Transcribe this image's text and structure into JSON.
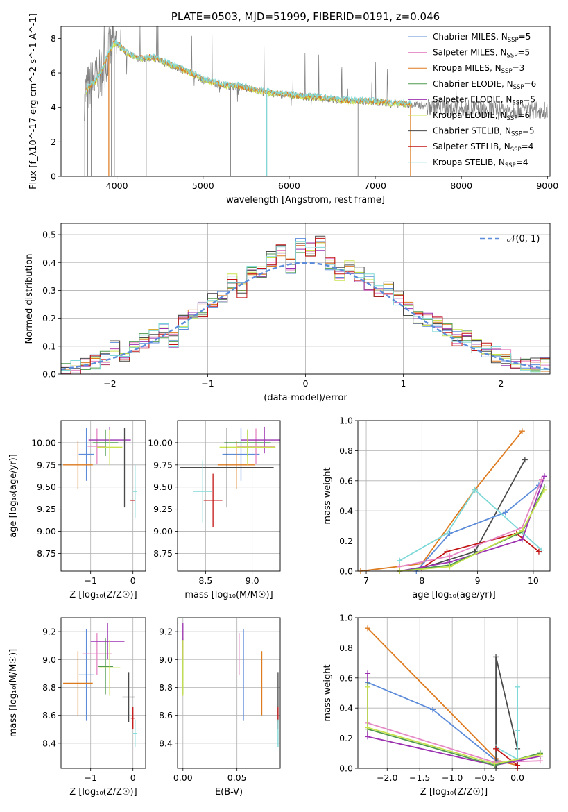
{
  "colors": {
    "Chabrier MILES": "#5b8bd9",
    "Salpeter MILES": "#e585c4",
    "Kroupa MILES": "#de7b1f",
    "Chabrier ELODIE": "#4f9a4f",
    "Salpeter ELODIE": "#9b30b0",
    "Kroupa ELODIE": "#c9e34f",
    "Chabrier STELIB": "#4a4a4a",
    "Salpeter STELIB": "#c21414",
    "Kroupa STELIB": "#7fd8d8",
    "spectrum": "#808080",
    "normal": "#5b8bd9"
  },
  "chart_data": [
    {
      "type": "line",
      "title": "PLATE=0503, MJD=51999, FIBERID=0191, z=0.046",
      "xlabel": "wavelength [Angstrom, rest frame]",
      "ylabel": "Flux [f_λ10^-17 erg cm^-2 s^-1 A^-1]",
      "xlim": [
        3350,
        9030
      ],
      "ylim": [
        0,
        8.7
      ],
      "xticks": [
        "4000",
        "5000",
        "6000",
        "7000",
        "8000",
        "9000"
      ],
      "yticks": [
        "0",
        "2",
        "4",
        "6",
        "8"
      ],
      "legend_position": "top-right",
      "legend": [
        {
          "model": "Chabrier MILES",
          "label": "Chabrier MILES, N",
          "nssp": "=5"
        },
        {
          "model": "Salpeter MILES",
          "label": "Salpeter MILES, N",
          "nssp": "=5"
        },
        {
          "model": "Kroupa MILES",
          "label": "Kroupa MILES, N",
          "nssp": "=3"
        },
        {
          "model": "Chabrier ELODIE",
          "label": "Chabrier ELODIE, N",
          "nssp": "=6"
        },
        {
          "model": "Salpeter ELODIE",
          "label": "Salpeter ELODIE, N",
          "nssp": "=5"
        },
        {
          "model": "Kroupa ELODIE",
          "label": "Kroupa ELODIE, N",
          "nssp": "=6"
        },
        {
          "model": "Chabrier STELIB",
          "label": "Chabrier STELIB, N",
          "nssp": "=5"
        },
        {
          "model": "Salpeter STELIB",
          "label": "Salpeter STELIB, N",
          "nssp": "=4"
        },
        {
          "model": "Kroupa STELIB",
          "label": "Kroupa STELIB, N",
          "nssp": "=4"
        }
      ],
      "legend_subscript": "SSP",
      "continuum": {
        "x": [
          3600,
          3650,
          3700,
          3750,
          3800,
          3850,
          3900,
          3950,
          4000,
          4100,
          4200,
          4300,
          4400,
          4500,
          4600,
          4800,
          5000,
          5200,
          5400,
          5600,
          5800,
          6000,
          6200,
          6400,
          6600,
          6800,
          7000,
          7200,
          7400
        ],
        "y": [
          4.5,
          5.0,
          5.3,
          5.5,
          5.9,
          6.4,
          7.1,
          7.6,
          7.7,
          7.2,
          6.9,
          6.8,
          6.9,
          6.7,
          6.5,
          6.1,
          5.6,
          5.3,
          5.2,
          5.0,
          4.8,
          4.7,
          4.6,
          4.5,
          4.4,
          4.35,
          4.3,
          4.2,
          4.15
        ]
      }
    },
    {
      "type": "bar",
      "xlabel": "(data-model)/error",
      "ylabel": "Normed distribution",
      "xlim": [
        -2.5,
        2.5
      ],
      "ylim": [
        0,
        0.54
      ],
      "xticks": [
        "−2",
        "−1",
        "0",
        "1",
        "2"
      ],
      "yticks": [
        "0.0",
        "0.1",
        "0.2",
        "0.3",
        "0.4",
        "0.5"
      ],
      "legend": "𝒩(0, 1)",
      "legend_position": "top-right",
      "bin_width": 0.1,
      "x": [
        -2.45,
        -2.35,
        -2.25,
        -2.15,
        -2.05,
        -1.95,
        -1.85,
        -1.75,
        -1.65,
        -1.55,
        -1.45,
        -1.35,
        -1.25,
        -1.15,
        -1.05,
        -0.95,
        -0.85,
        -0.75,
        -0.65,
        -0.55,
        -0.45,
        -0.35,
        -0.25,
        -0.15,
        -0.05,
        0.05,
        0.15,
        0.25,
        0.35,
        0.45,
        0.55,
        0.65,
        0.75,
        0.85,
        0.95,
        1.05,
        1.15,
        1.25,
        1.35,
        1.45,
        1.55,
        1.65,
        1.75,
        1.85,
        1.95,
        2.05,
        2.15,
        2.25,
        2.35,
        2.45
      ],
      "y": [
        0.02,
        0.025,
        0.03,
        0.04,
        0.06,
        0.09,
        0.07,
        0.1,
        0.12,
        0.14,
        0.16,
        0.12,
        0.19,
        0.21,
        0.23,
        0.26,
        0.27,
        0.33,
        0.3,
        0.37,
        0.36,
        0.41,
        0.44,
        0.39,
        0.46,
        0.45,
        0.47,
        0.4,
        0.36,
        0.38,
        0.36,
        0.33,
        0.3,
        0.31,
        0.27,
        0.24,
        0.21,
        0.2,
        0.18,
        0.16,
        0.13,
        0.14,
        0.1,
        0.09,
        0.07,
        0.06,
        0.05,
        0.04,
        0.035,
        0.03
      ]
    },
    {
      "type": "scatter",
      "xlabel": "Z [log₁₀(Z/Z☉)]",
      "ylabel": "age  [log₁₀(age/yr)]",
      "xlim": [
        -1.7,
        0.3
      ],
      "ylim": [
        8.55,
        10.25
      ],
      "xticks": [
        "−1",
        "0"
      ],
      "yticks": [
        "8.75",
        "9.00",
        "9.25",
        "9.50",
        "9.75",
        "10.00"
      ],
      "points": [
        {
          "model": "Chabrier MILES",
          "x": -1.1,
          "y": 9.87,
          "xerr": 0.18,
          "yerr": 0.3
        },
        {
          "model": "Salpeter MILES",
          "x": -0.85,
          "y": 9.96,
          "xerr": 0.22,
          "yerr": 0.2
        },
        {
          "model": "Kroupa MILES",
          "x": -1.3,
          "y": 9.75,
          "xerr": 0.35,
          "yerr": 0.27
        },
        {
          "model": "Chabrier ELODIE",
          "x": -0.65,
          "y": 10.0,
          "xerr": 0.3,
          "yerr": 0.15
        },
        {
          "model": "Salpeter ELODIE",
          "x": -0.55,
          "y": 10.03,
          "xerr": 0.5,
          "yerr": 0.15
        },
        {
          "model": "Kroupa ELODIE",
          "x": -0.55,
          "y": 9.95,
          "xerr": 0.3,
          "yerr": 0.2
        },
        {
          "model": "Chabrier STELIB",
          "x": -0.2,
          "y": 9.72,
          "xerr": 0.0,
          "yerr": 0.45
        },
        {
          "model": "Salpeter STELIB",
          "x": 0.0,
          "y": 9.35,
          "xerr": 0.06,
          "yerr": 0.0
        },
        {
          "model": "Kroupa STELIB",
          "x": 0.05,
          "y": 9.45,
          "xerr": 0.05,
          "yerr": 0.3
        }
      ]
    },
    {
      "type": "scatter",
      "xlabel": "mass [log₁₀(M/M☉)]",
      "ylabel": "",
      "xlim": [
        8.2,
        9.3
      ],
      "ylim": [
        8.55,
        10.25
      ],
      "xticks": [
        "8.5",
        "9.0"
      ],
      "yticks": [
        "8.75",
        "9.00",
        "9.25",
        "9.50",
        "9.75",
        "10.00"
      ],
      "points": [
        {
          "model": "Chabrier MILES",
          "x": 8.88,
          "y": 9.87,
          "xerr": 0.2,
          "yerr": 0.3
        },
        {
          "model": "Salpeter MILES",
          "x": 9.04,
          "y": 9.96,
          "xerr": 0.2,
          "yerr": 0.2
        },
        {
          "model": "Kroupa MILES",
          "x": 8.83,
          "y": 9.75,
          "xerr": 0.2,
          "yerr": 0.27
        },
        {
          "model": "Chabrier ELODIE",
          "x": 8.95,
          "y": 10.0,
          "xerr": 0.25,
          "yerr": 0.15
        },
        {
          "model": "Salpeter ELODIE",
          "x": 9.13,
          "y": 10.03,
          "xerr": 0.25,
          "yerr": 0.15
        },
        {
          "model": "Kroupa ELODIE",
          "x": 8.95,
          "y": 9.95,
          "xerr": 0.3,
          "yerr": 0.2
        },
        {
          "model": "Chabrier STELIB",
          "x": 8.73,
          "y": 9.72,
          "xerr": 0.5,
          "yerr": 0.45
        },
        {
          "model": "Salpeter STELIB",
          "x": 8.58,
          "y": 9.35,
          "xerr": 0.1,
          "yerr": 0.3
        },
        {
          "model": "Kroupa STELIB",
          "x": 8.47,
          "y": 9.45,
          "xerr": 0.1,
          "yerr": 0.35
        }
      ]
    },
    {
      "type": "line",
      "xlabel": "age  [log₁₀(age/yr)]",
      "ylabel": "mass weight",
      "xlim": [
        6.85,
        10.3
      ],
      "ylim": [
        0,
        1.0
      ],
      "xticks": [
        "7",
        "8",
        "9",
        "10"
      ],
      "yticks": [
        "0.0",
        "0.2",
        "0.4",
        "0.6",
        "0.8",
        "1.0"
      ],
      "series": [
        {
          "model": "Kroupa MILES",
          "x": [
            6.9,
            8.0,
            8.95,
            9.8
          ],
          "y": [
            0.0,
            0.05,
            0.54,
            0.93
          ]
        },
        {
          "model": "Chabrier STELIB",
          "x": [
            7.6,
            8.0,
            8.95,
            9.85
          ],
          "y": [
            0.0,
            0.02,
            0.13,
            0.74
          ]
        },
        {
          "model": "Chabrier MILES",
          "x": [
            7.9,
            8.5,
            9.5,
            10.1
          ],
          "y": [
            0.0,
            0.25,
            0.39,
            0.57
          ]
        },
        {
          "model": "Kroupa STELIB",
          "x": [
            7.6,
            8.45,
            8.95,
            10.15
          ],
          "y": [
            0.07,
            0.25,
            0.54,
            0.14
          ]
        },
        {
          "model": "Salpeter STELIB",
          "x": [
            7.6,
            8.0,
            8.45,
            9.7,
            10.1
          ],
          "y": [
            0.0,
            0.02,
            0.13,
            0.25,
            0.13
          ]
        },
        {
          "model": "Salpeter ELODIE",
          "x": [
            7.6,
            8.5,
            9.8,
            10.2
          ],
          "y": [
            0.0,
            0.06,
            0.21,
            0.63
          ]
        },
        {
          "model": "Salpeter MILES",
          "x": [
            7.6,
            8.5,
            9.8,
            10.15
          ],
          "y": [
            0.03,
            0.1,
            0.29,
            0.61
          ]
        },
        {
          "model": "Chabrier ELODIE",
          "x": [
            7.6,
            8.5,
            9.8,
            10.2
          ],
          "y": [
            0.0,
            0.04,
            0.26,
            0.56
          ]
        },
        {
          "model": "Kroupa ELODIE",
          "x": [
            7.6,
            8.5,
            9.8,
            10.2
          ],
          "y": [
            0.0,
            0.03,
            0.27,
            0.54
          ]
        }
      ]
    },
    {
      "type": "scatter",
      "xlabel": "Z [log₁₀(Z/Z☉)]",
      "ylabel": "mass [log₁₀(M/M☉)]",
      "xlim": [
        -1.7,
        0.3
      ],
      "ylim": [
        8.22,
        9.3
      ],
      "xticks": [
        "−1",
        "0"
      ],
      "yticks": [
        "8.4",
        "8.6",
        "8.8",
        "9.0",
        "9.2"
      ],
      "points": [
        {
          "model": "Chabrier MILES",
          "x": -1.1,
          "y": 8.89,
          "xerr": 0.18,
          "yerr": 0.33
        },
        {
          "model": "Salpeter MILES",
          "x": -0.85,
          "y": 9.04,
          "xerr": 0.35,
          "yerr": 0.15
        },
        {
          "model": "Kroupa MILES",
          "x": -1.3,
          "y": 8.83,
          "xerr": 0.35,
          "yerr": 0.23
        },
        {
          "model": "Chabrier ELODIE",
          "x": -0.65,
          "y": 8.95,
          "xerr": 0.18,
          "yerr": 0.2
        },
        {
          "model": "Salpeter ELODIE",
          "x": -0.6,
          "y": 9.13,
          "xerr": 0.4,
          "yerr": 0.13
        },
        {
          "model": "Kroupa ELODIE",
          "x": -0.55,
          "y": 8.94,
          "xerr": 0.25,
          "yerr": 0.2
        },
        {
          "model": "Chabrier STELIB",
          "x": -0.1,
          "y": 8.73,
          "xerr": 0.15,
          "yerr": 0.18
        },
        {
          "model": "Salpeter STELIB",
          "x": 0.0,
          "y": 8.58,
          "xerr": 0.05,
          "yerr": 0.08
        },
        {
          "model": "Kroupa STELIB",
          "x": 0.05,
          "y": 8.47,
          "xerr": 0.05,
          "yerr": 0.1
        }
      ]
    },
    {
      "type": "scatter",
      "xlabel": "E(B-V)",
      "ylabel": "",
      "xlim": [
        -0.005,
        0.09
      ],
      "ylim": [
        8.22,
        9.3
      ],
      "xticks": [
        "0.00",
        "0.05"
      ],
      "yticks": [
        "8.4",
        "8.6",
        "8.8",
        "9.0",
        "9.2"
      ],
      "points": [
        {
          "model": "Chabrier MILES",
          "x": 0.056,
          "y": 8.89,
          "xerr": 0,
          "yerr": 0.33
        },
        {
          "model": "Salpeter MILES",
          "x": 0.052,
          "y": 9.04,
          "xerr": 0,
          "yerr": 0.15
        },
        {
          "model": "Kroupa MILES",
          "x": 0.073,
          "y": 8.83,
          "xerr": 0,
          "yerr": 0.23
        },
        {
          "model": "Chabrier ELODIE",
          "x": 0.0,
          "y": 8.95,
          "xerr": 0,
          "yerr": 0.2
        },
        {
          "model": "Salpeter ELODIE",
          "x": 0.0,
          "y": 9.13,
          "xerr": 0,
          "yerr": 0.13
        },
        {
          "model": "Kroupa ELODIE",
          "x": 0.0,
          "y": 8.94,
          "xerr": 0,
          "yerr": 0.2
        },
        {
          "model": "Chabrier STELIB",
          "x": 0.088,
          "y": 8.73,
          "xerr": 0,
          "yerr": 0.18
        },
        {
          "model": "Salpeter STELIB",
          "x": 0.088,
          "y": 8.58,
          "xerr": 0,
          "yerr": 0.08
        },
        {
          "model": "Kroupa STELIB",
          "x": 0.088,
          "y": 8.47,
          "xerr": 0,
          "yerr": 0.1
        }
      ]
    },
    {
      "type": "line",
      "xlabel": "Z [log₁₀(Z/Z☉)]",
      "ylabel": "mass weight",
      "xlim": [
        -2.45,
        0.5
      ],
      "ylim": [
        0,
        1.0
      ],
      "xticks": [
        "−2.0",
        "−1.5",
        "−1.0",
        "−0.5",
        "0.0"
      ],
      "yticks": [
        "0.0",
        "0.2",
        "0.4",
        "0.6",
        "0.8",
        "1.0"
      ],
      "series": [
        {
          "model": "Kroupa MILES",
          "x": [
            -2.3,
            -0.3,
            0.0
          ],
          "y": [
            0.93,
            0.05,
            0.02
          ]
        },
        {
          "model": "Chabrier MILES",
          "x": [
            -2.3,
            -1.3,
            -0.3
          ],
          "y": [
            0.57,
            0.39,
            0.04
          ]
        },
        {
          "model": "Chabrier STELIB",
          "x": [
            -0.33,
            -0.33,
            0.0,
            0.0
          ],
          "y": [
            0.0,
            0.74,
            0.13,
            0.0
          ]
        },
        {
          "model": "Kroupa STELIB",
          "x": [
            -0.33,
            0.0,
            0.0,
            0.0
          ],
          "y": [
            0.14,
            0.06,
            0.54,
            0.25
          ]
        },
        {
          "model": "Salpeter STELIB",
          "x": [
            -0.33,
            0.0,
            0.0
          ],
          "y": [
            0.13,
            0.02,
            0.0
          ]
        },
        {
          "model": "Salpeter MILES",
          "x": [
            -2.3,
            -0.35,
            0.35
          ],
          "y": [
            0.3,
            0.04,
            0.05
          ]
        },
        {
          "model": "Salpeter ELODIE",
          "x": [
            -2.3,
            -2.3,
            -0.35,
            0.35
          ],
          "y": [
            0.63,
            0.21,
            0.02,
            0.08
          ]
        },
        {
          "model": "Chabrier ELODIE",
          "x": [
            -2.3,
            -2.3,
            -0.35,
            0.35
          ],
          "y": [
            0.56,
            0.26,
            0.02,
            0.1
          ]
        },
        {
          "model": "Kroupa ELODIE",
          "x": [
            -2.3,
            -2.3,
            -0.35,
            0.35
          ],
          "y": [
            0.54,
            0.27,
            0.03,
            0.09
          ]
        }
      ]
    }
  ]
}
